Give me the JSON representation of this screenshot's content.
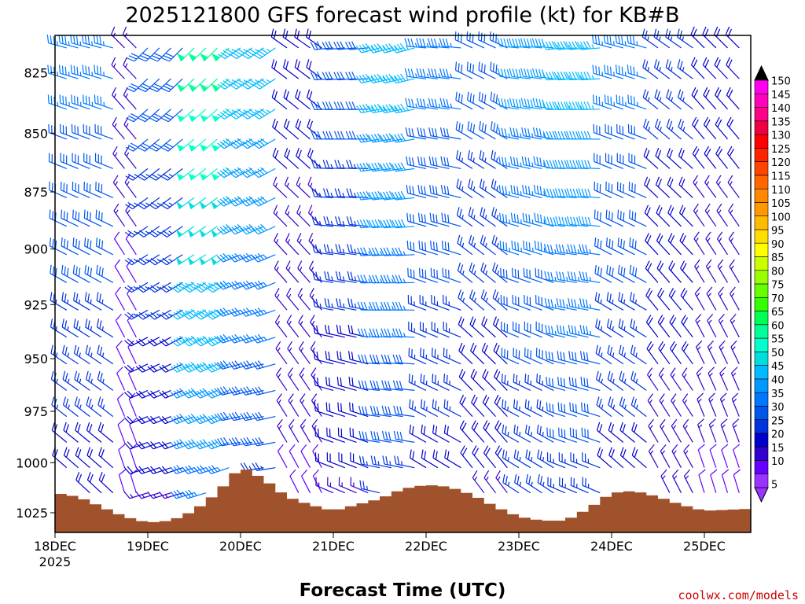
{
  "chart_data": {
    "type": "wind-profile",
    "title": "2025121800 GFS forecast wind profile (kt) for KB#B",
    "xlabel": "Forecast Time (UTC)",
    "credit": "coolwx.com/models",
    "credit_color": "#cc0000",
    "ground_color": "#a0522d",
    "y_axis": {
      "scale": "log-pressure",
      "ylim": [
        810,
        1035
      ],
      "ticks": [
        825,
        850,
        875,
        900,
        925,
        950,
        975,
        1000,
        1025
      ]
    },
    "x_axis": {
      "range": [
        "2025-12-18T00",
        "2025-12-25T12"
      ],
      "ticks": [
        {
          "time": "2025-12-18T00",
          "label": "18DEC",
          "sublabel": "2025"
        },
        {
          "time": "2025-12-19T00",
          "label": "19DEC"
        },
        {
          "time": "2025-12-20T00",
          "label": "20DEC"
        },
        {
          "time": "2025-12-21T00",
          "label": "21DEC"
        },
        {
          "time": "2025-12-22T00",
          "label": "22DEC"
        },
        {
          "time": "2025-12-23T00",
          "label": "23DEC"
        },
        {
          "time": "2025-12-24T00",
          "label": "24DEC"
        },
        {
          "time": "2025-12-25T00",
          "label": "25DEC"
        }
      ]
    },
    "colorbar": {
      "levels": [
        5,
        10,
        15,
        20,
        25,
        30,
        35,
        40,
        45,
        50,
        55,
        60,
        65,
        70,
        75,
        80,
        85,
        90,
        95,
        100,
        105,
        110,
        115,
        120,
        125,
        130,
        135,
        140,
        145,
        150
      ],
      "colors": [
        "#9933ff",
        "#6600ff",
        "#3300cc",
        "#0000cc",
        "#0033dd",
        "#0055ee",
        "#0077ff",
        "#0099ff",
        "#00bbff",
        "#00dddd",
        "#00ffcc",
        "#00ff99",
        "#00ff55",
        "#33ff00",
        "#66ff00",
        "#99ff00",
        "#ccff00",
        "#ffff00",
        "#ffdd00",
        "#ffbb00",
        "#ff9900",
        "#ff8800",
        "#ff6600",
        "#ff4400",
        "#ff2200",
        "#ff0000",
        "#ee0044",
        "#ff0088",
        "#ff00bb",
        "#ff00ee"
      ],
      "over_color": "#000000",
      "under_color": "#9933ff"
    },
    "surface_pressure": [
      {
        "time": "2025-12-18T00",
        "p": 1015
      },
      {
        "time": "2025-12-18T06",
        "p": 1017
      },
      {
        "time": "2025-12-18T12",
        "p": 1022
      },
      {
        "time": "2025-12-18T18",
        "p": 1027
      },
      {
        "time": "2025-12-19T00",
        "p": 1030
      },
      {
        "time": "2025-12-19T06",
        "p": 1029
      },
      {
        "time": "2025-12-19T12",
        "p": 1024
      },
      {
        "time": "2025-12-19T18",
        "p": 1015
      },
      {
        "time": "2025-12-20T00",
        "p": 1002
      },
      {
        "time": "2025-12-20T06",
        "p": 1008
      },
      {
        "time": "2025-12-20T12",
        "p": 1017
      },
      {
        "time": "2025-12-20T18",
        "p": 1021
      },
      {
        "time": "2025-12-21T00",
        "p": 1024
      },
      {
        "time": "2025-12-21T06",
        "p": 1021
      },
      {
        "time": "2025-12-21T12",
        "p": 1018
      },
      {
        "time": "2025-12-21T18",
        "p": 1013
      },
      {
        "time": "2025-12-22T00",
        "p": 1011
      },
      {
        "time": "2025-12-22T06",
        "p": 1012
      },
      {
        "time": "2025-12-22T12",
        "p": 1016
      },
      {
        "time": "2025-12-22T18",
        "p": 1022
      },
      {
        "time": "2025-12-23T00",
        "p": 1027
      },
      {
        "time": "2025-12-23T06",
        "p": 1029
      },
      {
        "time": "2025-12-23T12",
        "p": 1029
      },
      {
        "time": "2025-12-23T18",
        "p": 1023
      },
      {
        "time": "2025-12-24T00",
        "p": 1015
      },
      {
        "time": "2025-12-24T06",
        "p": 1014
      },
      {
        "time": "2025-12-24T12",
        "p": 1017
      },
      {
        "time": "2025-12-24T18",
        "p": 1021
      },
      {
        "time": "2025-12-25T00",
        "p": 1024
      },
      {
        "time": "2025-12-25T12",
        "p": 1023
      }
    ],
    "wind_regimes": [
      {
        "from": "2025-12-18T00",
        "to": "2025-12-18T18",
        "dir": 300,
        "speed": 35
      },
      {
        "from": "2025-12-18T18",
        "to": "2025-12-19T00",
        "dir": 330,
        "speed": 15
      },
      {
        "from": "2025-12-19T00",
        "to": "2025-12-19T12",
        "dir": 240,
        "speed": 30
      },
      {
        "from": "2025-12-19T12",
        "to": "2025-12-20T00",
        "dir": 240,
        "speed": 60
      },
      {
        "from": "2025-12-20T00",
        "to": "2025-12-20T12",
        "dir": 250,
        "speed": 45
      },
      {
        "from": "2025-12-20T12",
        "to": "2025-12-21T00",
        "dir": 320,
        "speed": 20
      },
      {
        "from": "2025-12-21T00",
        "to": "2025-12-21T12",
        "dir": 280,
        "speed": 30
      },
      {
        "from": "2025-12-21T12",
        "to": "2025-12-22T00",
        "dir": 270,
        "speed": 45
      },
      {
        "from": "2025-12-22T00",
        "to": "2025-12-22T12",
        "dir": 290,
        "speed": 35
      },
      {
        "from": "2025-12-22T12",
        "to": "2025-12-23T00",
        "dir": 310,
        "speed": 30
      },
      {
        "from": "2025-12-23T00",
        "to": "2025-12-23T12",
        "dir": 290,
        "speed": 40
      },
      {
        "from": "2025-12-23T12",
        "to": "2025-12-24T00",
        "dir": 280,
        "speed": 45
      },
      {
        "from": "2025-12-24T00",
        "to": "2025-12-24T12",
        "dir": 300,
        "speed": 35
      },
      {
        "from": "2025-12-24T12",
        "to": "2025-12-25T00",
        "dir": 320,
        "speed": 25
      },
      {
        "from": "2025-12-25T00",
        "to": "2025-12-25T12",
        "dir": 330,
        "speed": 20
      }
    ]
  }
}
